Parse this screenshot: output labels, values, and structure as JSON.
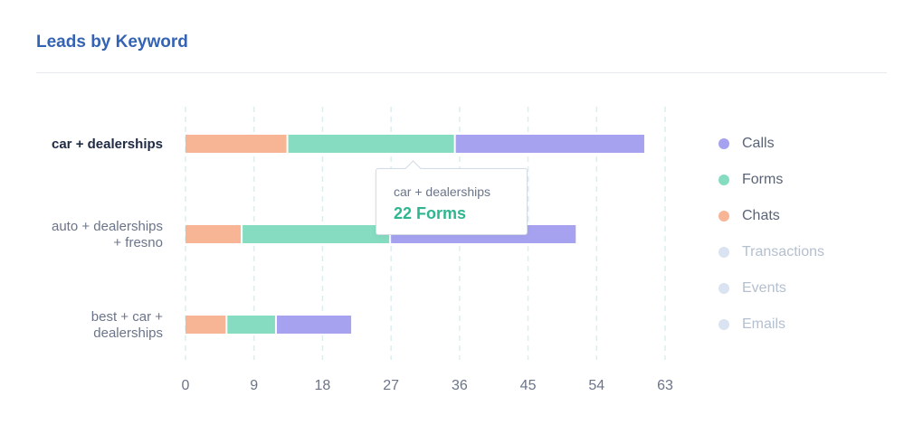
{
  "header": {
    "title": "Leads by Keyword"
  },
  "chart_data": {
    "type": "bar",
    "orientation": "horizontal",
    "stacked": true,
    "categories": [
      "car + dealerships",
      "auto + dealerships + fresno",
      "best + car + dealerships"
    ],
    "category_lines": [
      [
        "car + dealerships"
      ],
      [
        "auto + dealerships",
        "+ fresno"
      ],
      [
        "best + car +",
        "dealerships"
      ]
    ],
    "highlighted_category": 0,
    "series": [
      {
        "name": "Chats",
        "values": [
          13.5,
          7.5,
          5.5
        ],
        "color": "#f8b595"
      },
      {
        "name": "Forms",
        "values": [
          22,
          19.5,
          6.5
        ],
        "color": "#86dcc1"
      },
      {
        "name": "Calls",
        "values": [
          25,
          24.5,
          10
        ],
        "color": "#a6a2f0"
      }
    ],
    "x_ticks": [
      0,
      9,
      18,
      27,
      36,
      45,
      54,
      63
    ],
    "xlim": [
      0,
      63
    ],
    "grid": "dashed-vertical"
  },
  "legend": {
    "placement": "right",
    "items": [
      {
        "label": "Calls",
        "color": "#a6a2f0",
        "active": true
      },
      {
        "label": "Forms",
        "color": "#86dcc1",
        "active": true
      },
      {
        "label": "Chats",
        "color": "#f8b595",
        "active": true
      },
      {
        "label": "Transactions",
        "color": "#dae3f1",
        "active": false
      },
      {
        "label": "Events",
        "color": "#dae3f1",
        "active": false
      },
      {
        "label": "Emails",
        "color": "#dae3f1",
        "active": false
      }
    ]
  },
  "tooltip": {
    "category": "car + dealerships",
    "value_text": "22 Forms"
  }
}
